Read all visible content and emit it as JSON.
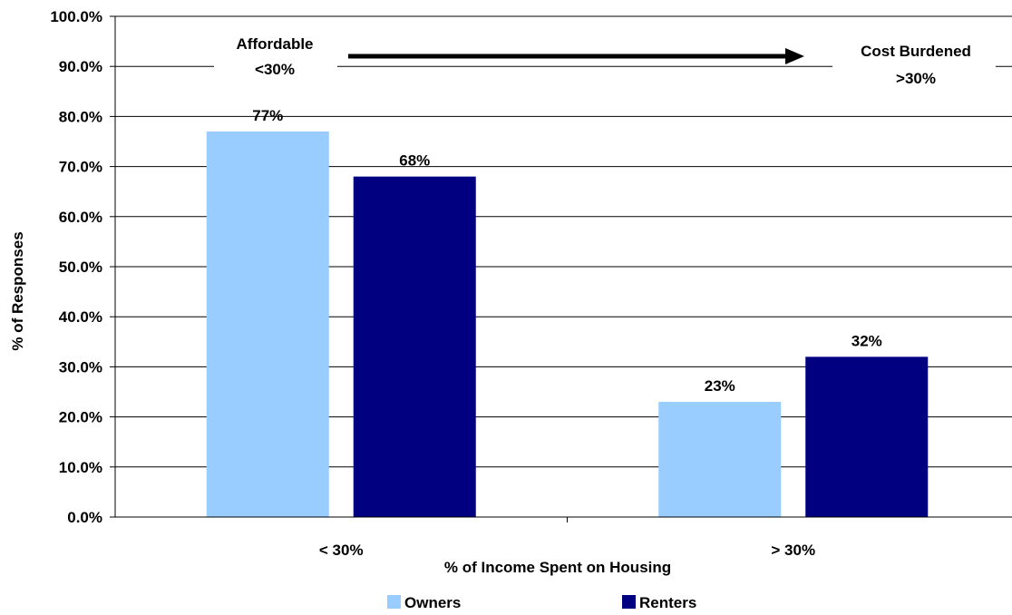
{
  "chart_data": {
    "type": "bar",
    "categories": [
      "< 30%",
      "> 30%"
    ],
    "series": [
      {
        "name": "Owners",
        "values": [
          77,
          23
        ],
        "data_labels": [
          "77%",
          "23%"
        ]
      },
      {
        "name": "Renters",
        "values": [
          68,
          32
        ],
        "data_labels": [
          "68%",
          "32%"
        ]
      }
    ],
    "colors": {
      "Owners": "#99CCFF",
      "Renters": "#000080"
    },
    "title": "",
    "xlabel": "% of Income Spent on Housing",
    "ylabel": "% of Responses",
    "ylim": [
      0,
      100
    ],
    "yticks": [
      0,
      10,
      20,
      30,
      40,
      50,
      60,
      70,
      80,
      90,
      100
    ],
    "ytick_labels": [
      "0.0%",
      "10.0%",
      "20.0%",
      "30.0%",
      "40.0%",
      "50.0%",
      "60.0%",
      "70.0%",
      "80.0%",
      "90.0%",
      "100.0%"
    ],
    "grid": true,
    "legend": "bottom",
    "annotations": {
      "left_line1": "Affordable",
      "left_line2": "<30%",
      "right_line1": "Cost Burdened",
      "right_line2": ">30%"
    }
  }
}
